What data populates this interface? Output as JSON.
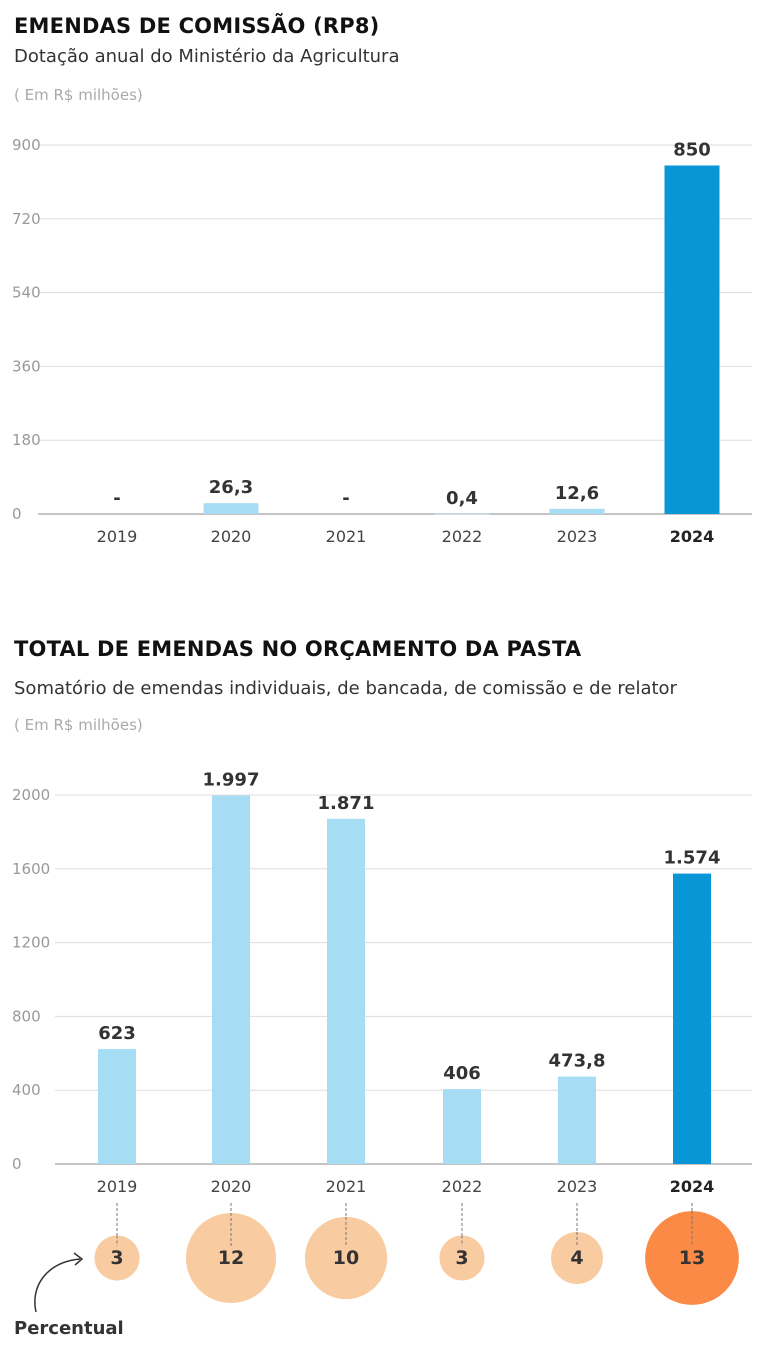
{
  "colors": {
    "bar": "#a6ddf5",
    "bar_highlight": "#0896d6",
    "bubble": "#f9cba1",
    "bubble_highlight": "#fb8a46",
    "grid": "#dddddd"
  },
  "chart_data": [
    {
      "type": "bar",
      "title": "EMENDAS DE COMISSÃO (RP8)",
      "subtitle": "Dotação anual do Ministério da Agricultura",
      "unit": "( Em R$ milhões)",
      "categories": [
        "2019",
        "2020",
        "2021",
        "2022",
        "2023",
        "2024"
      ],
      "values": [
        null,
        26.3,
        null,
        0.4,
        12.6,
        850
      ],
      "data_labels": [
        "-",
        "26,3",
        "-",
        "0,4",
        "12,6",
        "850"
      ],
      "highlight": "2024",
      "ylim": [
        0,
        900
      ],
      "yticks": [
        "0",
        "180",
        "360",
        "540",
        "720",
        "900"
      ],
      "grid": true
    },
    {
      "type": "bar",
      "title": "TOTAL DE EMENDAS NO ORÇAMENTO DA PASTA",
      "subtitle": "Somatório de emendas individuais, de bancada, de comissão e de relator",
      "unit": "( Em R$ milhões)",
      "categories": [
        "2019",
        "2020",
        "2021",
        "2022",
        "2023",
        "2024"
      ],
      "values": [
        623,
        1997,
        1871,
        406,
        473.8,
        1574
      ],
      "data_labels": [
        "623",
        "1.997",
        "1.871",
        "406",
        "473,8",
        "1.574"
      ],
      "highlight": "2024",
      "ylim": [
        0,
        2000
      ],
      "yticks": [
        "0",
        "400",
        "800",
        "1200",
        "1600",
        "2000"
      ],
      "grid": true,
      "percentual": {
        "label": "Percentual",
        "values": [
          3,
          12,
          10,
          3,
          4,
          13
        ]
      }
    }
  ]
}
